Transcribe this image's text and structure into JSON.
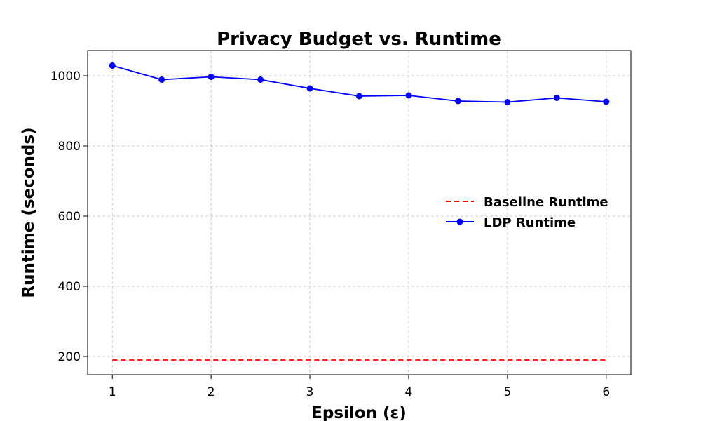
{
  "chart_data": {
    "type": "line",
    "title": "Privacy Budget vs. Runtime",
    "xlabel": "Epsilon (ε)",
    "ylabel": "Runtime (seconds)",
    "xlim": [
      0.75,
      6.25
    ],
    "ylim": [
      148,
      1072
    ],
    "xticks": [
      1,
      2,
      3,
      4,
      5,
      6
    ],
    "yticks": [
      200,
      400,
      600,
      800,
      1000
    ],
    "grid": true,
    "legend_position": "center-right",
    "series": [
      {
        "name": "Baseline Runtime",
        "style": "dashed",
        "marker": "none",
        "color": "#ff0000",
        "x": [
          1,
          6
        ],
        "values": [
          190,
          190
        ]
      },
      {
        "name": "LDP Runtime",
        "style": "solid",
        "marker": "circle",
        "color": "#0000ff",
        "x": [
          1,
          1.5,
          2,
          2.5,
          3,
          3.5,
          4,
          4.5,
          5,
          5.5,
          6
        ],
        "values": [
          1029,
          989,
          997,
          989,
          964,
          942,
          944,
          928,
          925,
          937,
          926
        ]
      }
    ]
  }
}
